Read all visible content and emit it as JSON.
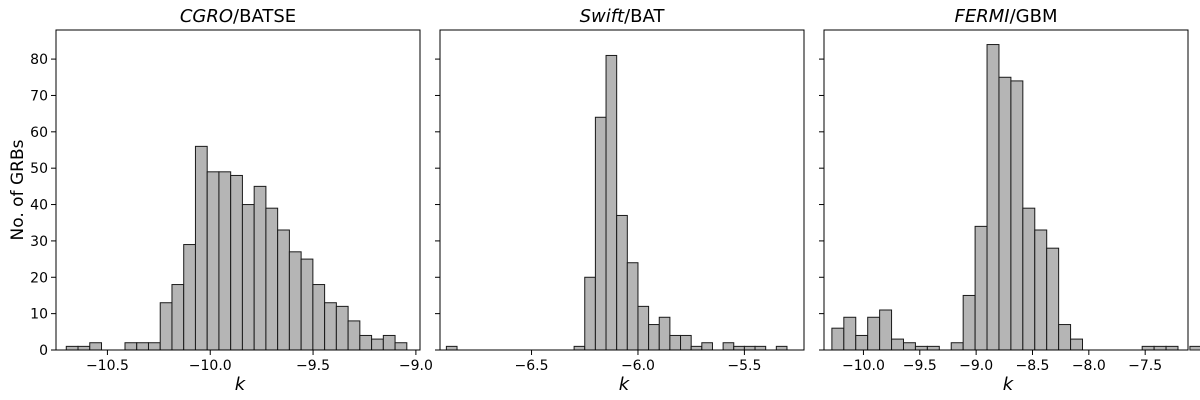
{
  "figure": {
    "ylabel": "No. of GRBs"
  },
  "chart_data": [
    {
      "type": "bar",
      "title_italic": "CGRO",
      "title_rest": "/BATSE",
      "xlabel": "k",
      "ylabel": "No. of GRBs",
      "xlim": [
        -10.75,
        -8.98
      ],
      "ylim": [
        0,
        88
      ],
      "x_ticks": [
        -10.5,
        -10.0,
        -9.5,
        -9.0
      ],
      "x_tick_labels": [
        "−10.5",
        "−10.0",
        "−9.5",
        "−9.0"
      ],
      "y_ticks": [
        0,
        10,
        20,
        30,
        40,
        50,
        60,
        70,
        80
      ],
      "y_tick_labels": [
        "0",
        "10",
        "20",
        "30",
        "40",
        "50",
        "60",
        "70",
        "80"
      ],
      "bin_start": -10.7,
      "bin_width": 0.0571,
      "values": [
        1,
        1,
        2,
        0,
        0,
        2,
        2,
        2,
        13,
        18,
        29,
        56,
        49,
        49,
        48,
        40,
        45,
        39,
        33,
        27,
        25,
        18,
        13,
        12,
        8,
        4,
        3,
        4,
        2
      ],
      "grid": false
    },
    {
      "type": "bar",
      "title_italic": "Swift",
      "title_rest": "/BAT",
      "xlabel": "k",
      "xlim": [
        -6.93,
        -5.22
      ],
      "ylim": [
        0,
        88
      ],
      "x_ticks": [
        -6.5,
        -6.0,
        -5.5
      ],
      "x_tick_labels": [
        "−6.5",
        "−6.0",
        "−5.5"
      ],
      "bin_start": -6.9,
      "bin_width": 0.05,
      "values": [
        1,
        0,
        0,
        0,
        0,
        0,
        0,
        0,
        0,
        0,
        0,
        0,
        1,
        20,
        64,
        81,
        37,
        24,
        12,
        7,
        9,
        4,
        4,
        1,
        2,
        0,
        2,
        1,
        1,
        1,
        0,
        1
      ],
      "grid": false
    },
    {
      "type": "bar",
      "title_italic": "FERMI",
      "title_rest": "/GBM",
      "xlabel": "k",
      "xlim": [
        -10.35,
        -7.12
      ],
      "ylim": [
        0,
        88
      ],
      "x_ticks": [
        -10.0,
        -9.5,
        -9.0,
        -8.5,
        -8.0,
        -7.5
      ],
      "x_tick_labels": [
        "−10.0",
        "−9.5",
        "−9.0",
        "−8.5",
        "−8.0",
        "−7.5"
      ],
      "bin_start": -10.28,
      "bin_width": 0.1059,
      "values": [
        6,
        9,
        4,
        9,
        11,
        3,
        2,
        1,
        1,
        0,
        2,
        15,
        34,
        84,
        75,
        74,
        39,
        33,
        28,
        7,
        3,
        0,
        0,
        0,
        0,
        0,
        1,
        1,
        1,
        0,
        1
      ],
      "grid": false
    }
  ]
}
